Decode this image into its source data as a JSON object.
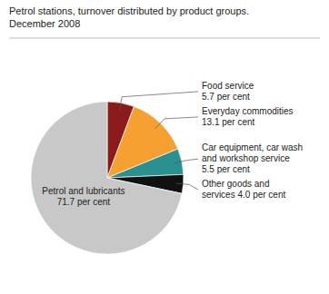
{
  "chart_data": {
    "type": "pie",
    "title": "Petrol stations, turnover distributed by product groups.\nDecember 2008",
    "categories": [
      "Food service\n5.7 per cent",
      "Everyday commodities\n13.1 per cent",
      "Car equipment, car wash\nand workshop service\n5.5 per cent",
      "Other goods and\nservices 4.0 per cent",
      "Petrol and lubricants\n71.7 per cent"
    ],
    "values": [
      5.7,
      13.1,
      5.5,
      4.0,
      71.7
    ],
    "colors": [
      "#8b1a1a",
      "#f5a030",
      "#2a9090",
      "#111111",
      "#c8c8c8"
    ]
  }
}
